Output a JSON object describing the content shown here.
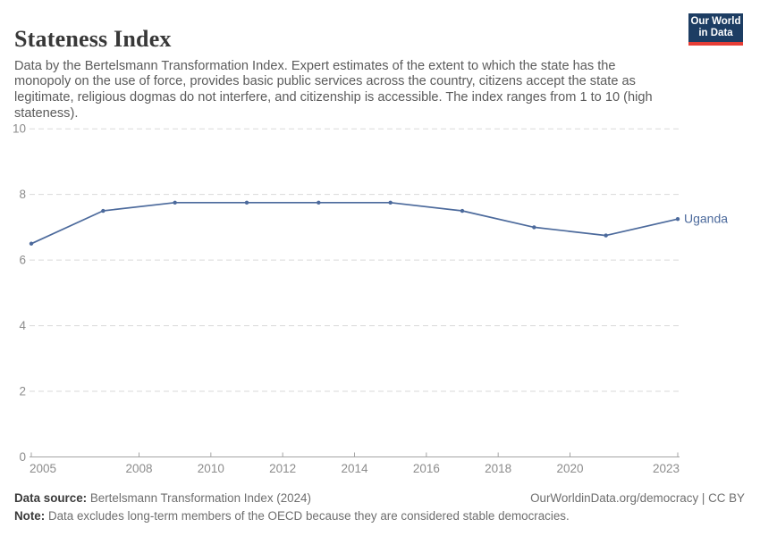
{
  "header": {
    "title": "Stateness Index",
    "subtitle": "Data by the Bertelsmann Transformation Index. Expert estimates of the extent to which the state has the monopoly on the use of force, provides basic public services across the country, citizens accept the state as legitimate, religious dogmas do not interfere, and citizenship is accessible. The index ranges from 1 to 10 (high stateness).",
    "logo": {
      "line1": "Our World",
      "line2": "in Data"
    }
  },
  "chart_data": {
    "type": "line",
    "title": "Stateness Index",
    "x": [
      2005,
      2007,
      2009,
      2011,
      2013,
      2015,
      2017,
      2019,
      2021,
      2023
    ],
    "series": [
      {
        "name": "Uganda",
        "values": [
          6.5,
          7.5,
          7.75,
          7.75,
          7.75,
          7.75,
          7.5,
          7.0,
          6.75,
          7.25
        ],
        "color": "#4c6a9c"
      }
    ],
    "xlabel": "",
    "ylabel": "",
    "xlim": [
      2005,
      2023
    ],
    "ylim": [
      0,
      10
    ],
    "yticks": [
      0,
      2,
      4,
      6,
      8,
      10
    ],
    "xticks": [
      2005,
      2008,
      2010,
      2012,
      2014,
      2016,
      2018,
      2020,
      2023
    ],
    "grid": "horizontal-dashed",
    "legend_position": "end-of-line-label"
  },
  "footer": {
    "source_label": "Data source:",
    "source_value": " Bertelsmann Transformation Index (2024)",
    "credit": "OurWorldinData.org/democracy | CC BY",
    "note_label": "Note:",
    "note_value": " Data excludes long-term members of the OECD because they are considered stable democracies."
  },
  "colors": {
    "line": "#4c6a9c",
    "grid": "#dadada",
    "axis": "#a5a5a5",
    "tick_text": "#8c8c8c",
    "logo_bg": "#1d3d63",
    "logo_accent": "#e63e36"
  }
}
